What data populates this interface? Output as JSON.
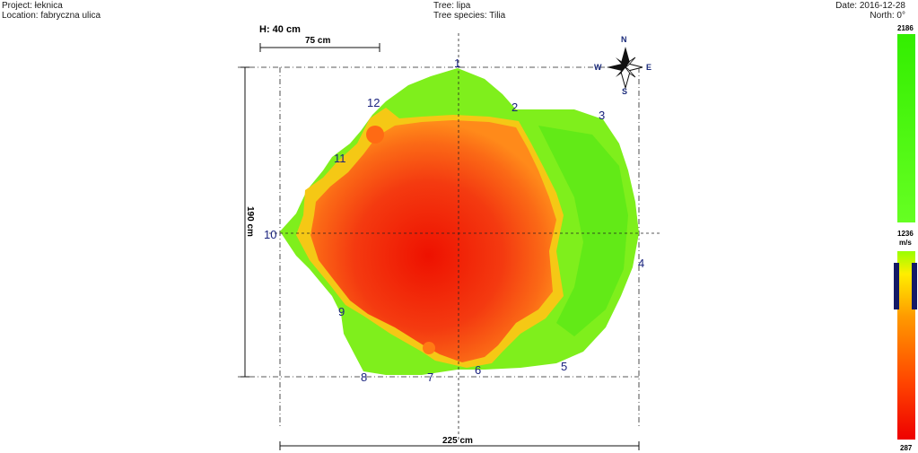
{
  "header": {
    "project": "Project: łeknica",
    "location": "Location: fabryczna ulica",
    "tree": "Tree: lipa",
    "species": "Tree species: Tilia",
    "date": "Date: 2016-12-28",
    "north": "North: 0°"
  },
  "scale": {
    "height": "H: 40 cm",
    "bar": "75 cm",
    "width": "225 cm",
    "depth": "190 cm"
  },
  "compass": {
    "n": "N",
    "s": "S",
    "e": "E",
    "w": "W"
  },
  "colorbar": {
    "max": "2186",
    "mid": "1236",
    "unit": "m/s",
    "min": "287",
    "green": "#33ee00",
    "yellow": "#ffee00",
    "orange": "#ff8800",
    "red": "#ee1100"
  },
  "sensors": [
    "1",
    "2",
    "3",
    "4",
    "5",
    "6",
    "7",
    "8",
    "9",
    "10",
    "11",
    "12"
  ]
}
